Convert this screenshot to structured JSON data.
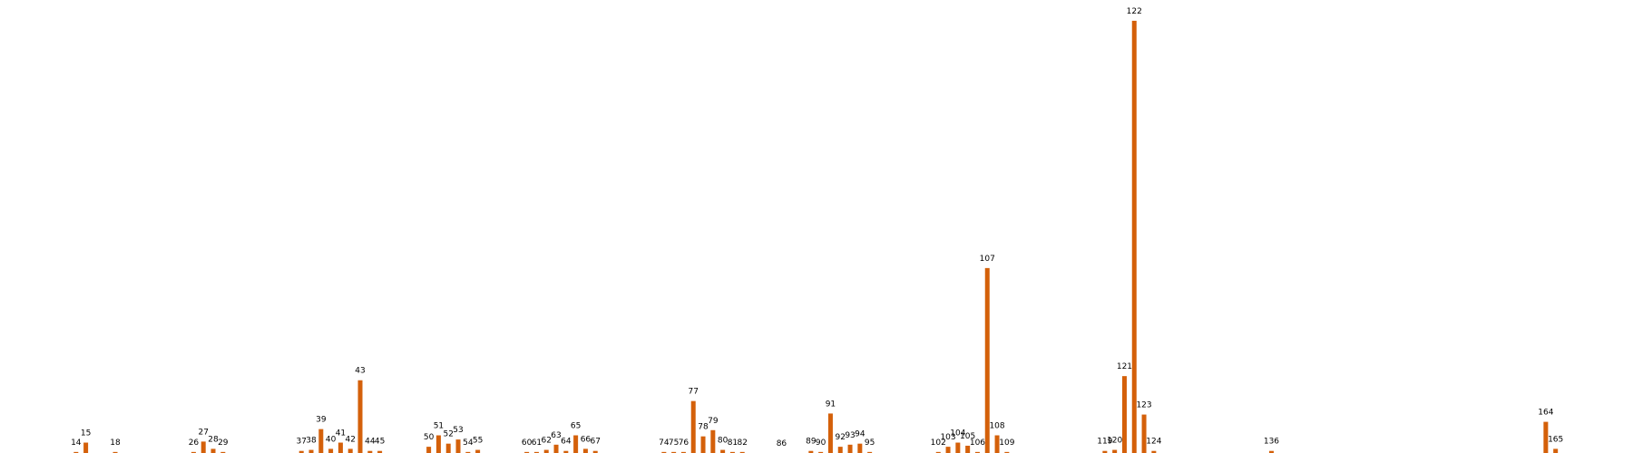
{
  "chart_data": {
    "type": "bar",
    "x": [
      14,
      15,
      18,
      26,
      27,
      28,
      29,
      37,
      38,
      39,
      40,
      41,
      42,
      43,
      44,
      45,
      50,
      51,
      52,
      53,
      54,
      55,
      60,
      61,
      62,
      63,
      64,
      65,
      66,
      67,
      74,
      75,
      76,
      77,
      78,
      79,
      80,
      81,
      82,
      86,
      89,
      90,
      91,
      92,
      93,
      94,
      95,
      102,
      103,
      104,
      105,
      106,
      107,
      108,
      109,
      119,
      120,
      121,
      122,
      123,
      124,
      136,
      164,
      165
    ],
    "values": [
      1,
      10,
      1,
      1,
      11,
      4,
      1,
      2,
      3,
      23,
      4,
      10,
      4,
      70,
      2,
      2,
      6,
      17,
      9,
      13,
      1,
      3,
      1,
      1,
      3,
      8,
      2,
      17,
      4,
      2,
      1,
      1,
      1,
      50,
      16,
      22,
      3,
      1,
      1,
      0,
      2,
      1,
      38,
      6,
      8,
      9,
      1,
      1,
      6,
      10,
      7,
      1,
      178,
      17,
      1,
      2,
      3,
      74,
      416,
      37,
      2,
      2,
      30,
      4
    ],
    "color": "#d4600a",
    "xlim": [
      6.24,
      172.9
    ],
    "ylim": [
      0,
      436
    ]
  }
}
